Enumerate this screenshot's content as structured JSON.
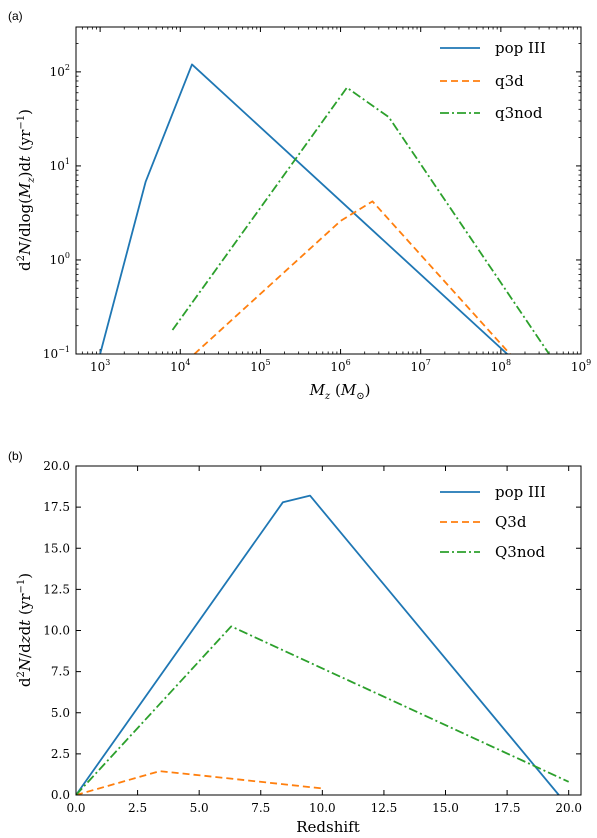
{
  "chart_data": [
    {
      "type": "line",
      "panel": "(a)",
      "xscale": "log",
      "yscale": "log",
      "xlim": [
        500,
        1000000000
      ],
      "ylim": [
        0.1,
        300
      ],
      "xticks": [
        1000,
        10000,
        100000,
        1000000,
        10000000,
        100000000,
        1000000000
      ],
      "xtick_labels": [
        {
          "base": "10",
          "exp": "3"
        },
        {
          "base": "10",
          "exp": "4"
        },
        {
          "base": "10",
          "exp": "5"
        },
        {
          "base": "10",
          "exp": "6"
        },
        {
          "base": "10",
          "exp": "7"
        },
        {
          "base": "10",
          "exp": "8"
        },
        {
          "base": "10",
          "exp": "9"
        }
      ],
      "yticks": [
        0.1,
        1,
        10,
        100
      ],
      "ytick_labels": [
        {
          "base": "10",
          "exp": "−1"
        },
        {
          "base": "10",
          "exp": "0"
        },
        {
          "base": "10",
          "exp": "1"
        },
        {
          "base": "10",
          "exp": "2"
        }
      ],
      "xlabel": "M_z (M_⊙)",
      "ylabel": "d²N/dlog(M_z)dt (yr⁻¹)",
      "legend_position": "top-right",
      "series": [
        {
          "name": "pop III",
          "color": "#1f77b4",
          "dash": "solid",
          "x": [
            1000,
            3700,
            14000,
            120000000
          ],
          "y": [
            0.1,
            6.8,
            120,
            0.1
          ]
        },
        {
          "name": "q3d",
          "color": "#ff7f0e",
          "dash": "dashed",
          "x": [
            15000,
            1000000,
            2500000,
            130000000
          ],
          "y": [
            0.1,
            2.6,
            4.2,
            0.1
          ]
        },
        {
          "name": "q3nod",
          "color": "#2ca02c",
          "dash": "dashdot",
          "x": [
            8000,
            1200000,
            4000000,
            400000000
          ],
          "y": [
            0.18,
            68,
            33,
            0.1
          ]
        }
      ]
    },
    {
      "type": "line",
      "panel": "(b)",
      "xlim": [
        0,
        20.5
      ],
      "ylim": [
        0,
        20
      ],
      "xticks": [
        0,
        2.5,
        5,
        7.5,
        10,
        12.5,
        15,
        17.5,
        20
      ],
      "xtick_labels": [
        "0.0",
        "2.5",
        "5.0",
        "7.5",
        "10.0",
        "12.5",
        "15.0",
        "17.5",
        "20.0"
      ],
      "yticks": [
        0,
        2.5,
        5,
        7.5,
        10,
        12.5,
        15,
        17.5,
        20
      ],
      "ytick_labels": [
        "0.0",
        "2.5",
        "5.0",
        "7.5",
        "10.0",
        "12.5",
        "15.0",
        "17.5",
        "20.0"
      ],
      "xlabel": "Redshift",
      "ylabel": "d²N/dzdt (yr⁻¹)",
      "legend_position": "top-right",
      "series": [
        {
          "name": "pop III",
          "color": "#1f77b4",
          "dash": "solid",
          "x": [
            0,
            8.4,
            9.5,
            19.6
          ],
          "y": [
            0,
            17.8,
            18.2,
            0
          ]
        },
        {
          "name": "Q3d",
          "color": "#ff7f0e",
          "dash": "dashed",
          "x": [
            0,
            3.4,
            5.0,
            10.0
          ],
          "y": [
            0,
            1.45,
            1.2,
            0.4
          ]
        },
        {
          "name": "Q3nod",
          "color": "#2ca02c",
          "dash": "dashdot",
          "x": [
            0,
            6.3,
            20.0
          ],
          "y": [
            0,
            10.25,
            0.8
          ]
        }
      ]
    }
  ]
}
